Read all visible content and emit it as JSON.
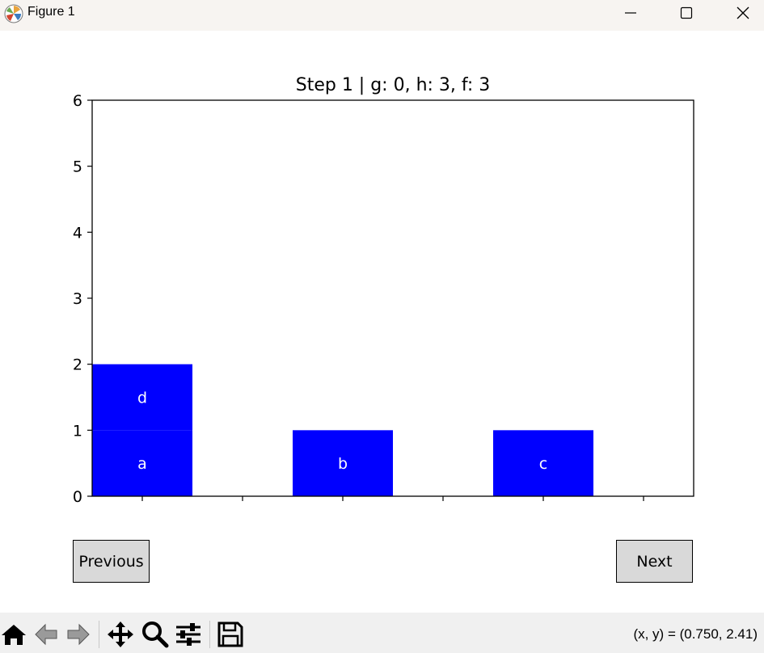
{
  "window": {
    "title": "Figure 1"
  },
  "chart_data": {
    "type": "bar",
    "title": "Step 1 | g: 0, h: 3, f: 3",
    "xlabel": "",
    "ylabel": "",
    "xlim": [
      0.5,
      6.5
    ],
    "ylim": [
      0,
      6
    ],
    "xticks": [
      1,
      2,
      3,
      4,
      5,
      6
    ],
    "yticks": [
      0,
      1,
      2,
      3,
      4,
      5,
      6
    ],
    "bar_width": 1.0,
    "bar_color": "#0000ff",
    "label_color": "#ffffff",
    "blocks": [
      {
        "x": 1,
        "level": 0,
        "label": "a"
      },
      {
        "x": 1,
        "level": 1,
        "label": "d"
      },
      {
        "x": 3,
        "level": 0,
        "label": "b"
      },
      {
        "x": 5,
        "level": 0,
        "label": "c"
      }
    ]
  },
  "buttons": {
    "previous": "Previous",
    "next": "Next"
  },
  "toolbar": {
    "coords": "(x, y) = (0.750, 2.41)",
    "tools": [
      "home-icon",
      "back-icon",
      "forward-icon",
      "pan-icon",
      "zoom-icon",
      "configure-subplots-icon",
      "save-icon"
    ]
  }
}
